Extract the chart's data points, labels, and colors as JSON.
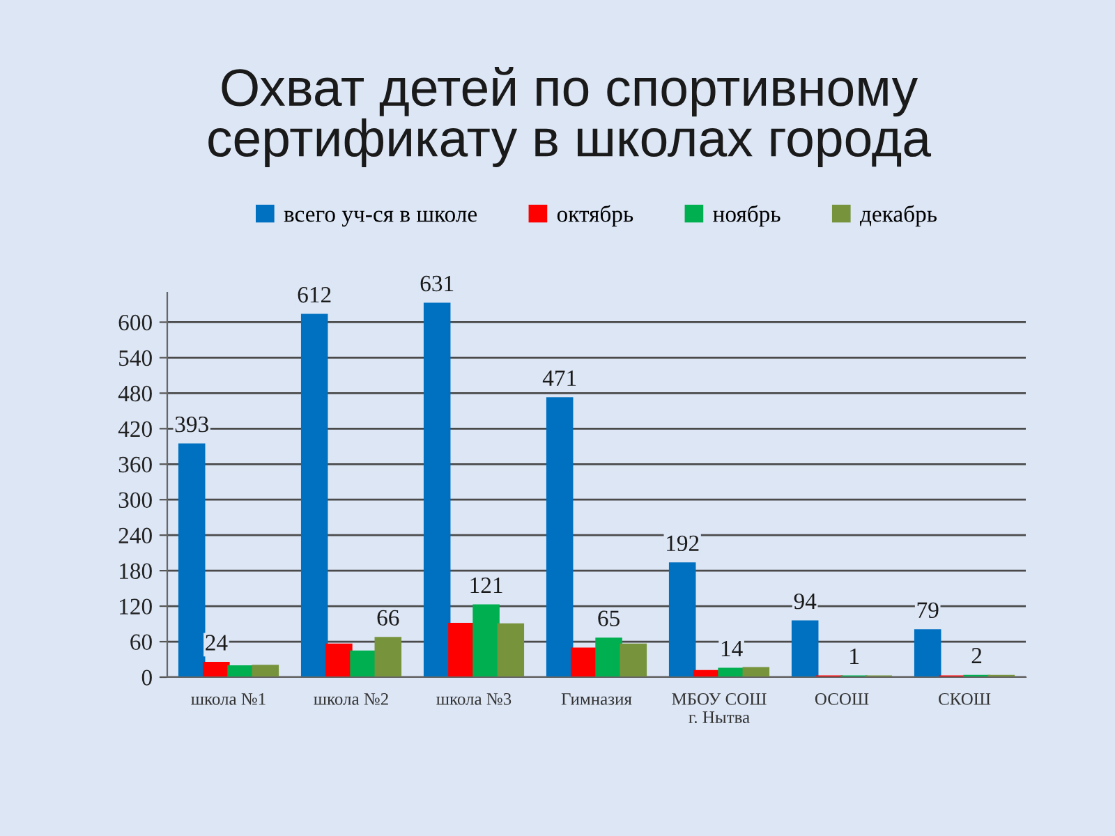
{
  "chart_data": {
    "type": "bar",
    "title": "Охват детей по спортивному\nсертификату в школах города",
    "categories": [
      "школа №1",
      "школа №2",
      "школа №3",
      "Гимназия",
      "МБОУ СОШ\nг. Нытва",
      "ОСОШ",
      "СКОШ"
    ],
    "series": [
      {
        "name": "всего уч-ся в школе",
        "color": "#0070c0",
        "values": [
          393,
          612,
          631,
          471,
          192,
          94,
          79
        ],
        "value_labels": [
          "393",
          "612",
          "631",
          "471",
          "192",
          "94",
          "79"
        ]
      },
      {
        "name": "октябрь",
        "color": "#ff0000",
        "values": [
          24,
          55,
          90,
          48,
          10,
          1,
          1
        ],
        "value_labels": [
          "24",
          null,
          null,
          null,
          null,
          null,
          null
        ]
      },
      {
        "name": "ноябрь",
        "color": "#00b050",
        "values": [
          18,
          43,
          121,
          65,
          14,
          1,
          2
        ],
        "value_labels": [
          null,
          null,
          "121",
          "65",
          "14",
          "1",
          "2"
        ]
      },
      {
        "name": "декабрь",
        "color": "#77933c",
        "values": [
          19,
          66,
          89,
          55,
          15,
          1,
          2
        ],
        "value_labels": [
          null,
          "66",
          null,
          null,
          null,
          null,
          null
        ]
      }
    ],
    "ylim": [
      0,
      650
    ],
    "yticks": [
      0,
      60,
      120,
      180,
      240,
      300,
      360,
      420,
      480,
      540,
      600
    ],
    "grid": "y",
    "legend": "top"
  }
}
